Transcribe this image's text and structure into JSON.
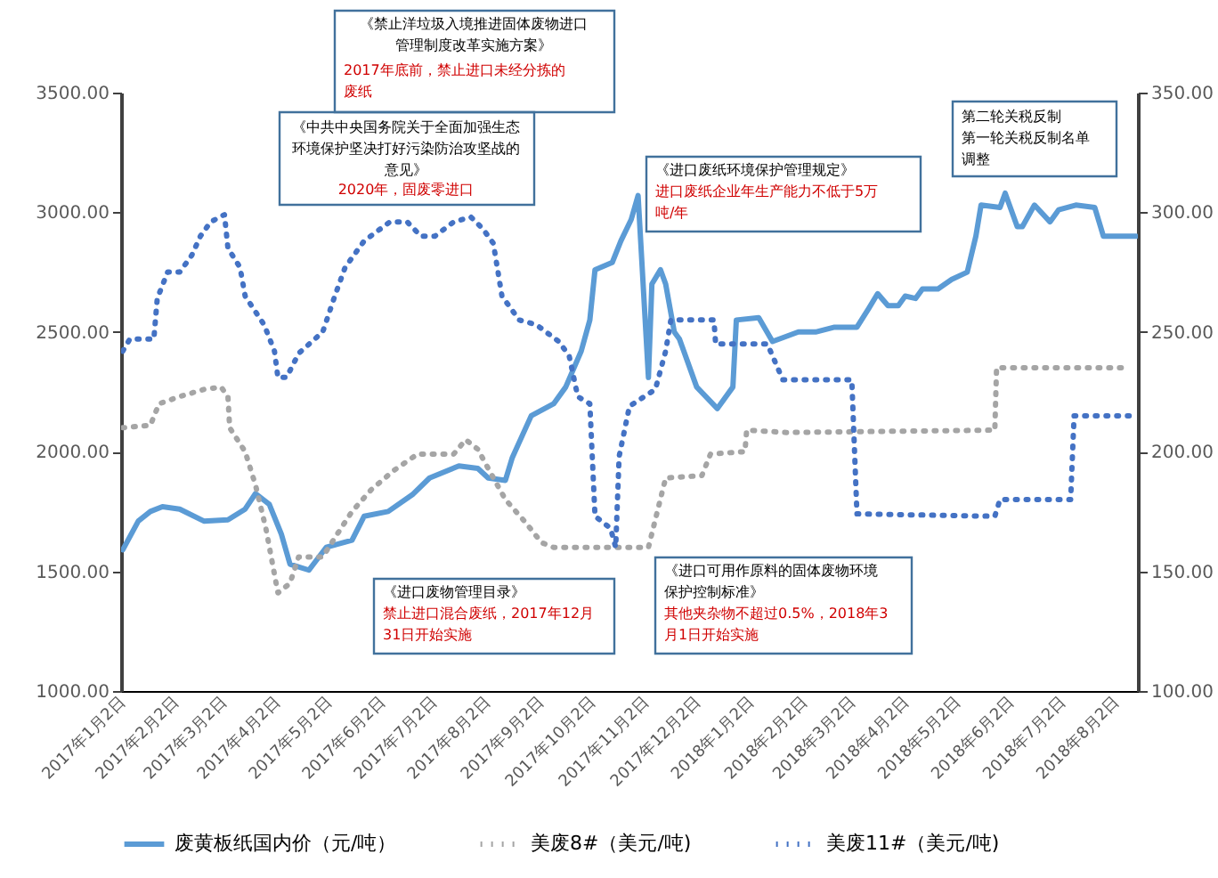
{
  "chart_data": {
    "type": "line",
    "legend": "bottom",
    "grid": false,
    "xlim": [
      "2017-01-02",
      "2018-08-15"
    ],
    "xticks": [
      {
        "value": "2017-01-02",
        "label": "2017年1月2日"
      },
      {
        "value": "2017-02-02",
        "label": "2017年2月2日"
      },
      {
        "value": "2017-03-02",
        "label": "2017年3月2日"
      },
      {
        "value": "2017-04-02",
        "label": "2017年4月2日"
      },
      {
        "value": "2017-05-02",
        "label": "2017年5月2日"
      },
      {
        "value": "2017-06-02",
        "label": "2017年6月2日"
      },
      {
        "value": "2017-07-02",
        "label": "2017年7月2日"
      },
      {
        "value": "2017-08-02",
        "label": "2017年8月2日"
      },
      {
        "value": "2017-09-02",
        "label": "2017年9月2日"
      },
      {
        "value": "2017-10-02",
        "label": "2017年10月2日"
      },
      {
        "value": "2017-11-02",
        "label": "2017年11月2日"
      },
      {
        "value": "2017-12-02",
        "label": "2017年12月2日"
      },
      {
        "value": "2018-01-02",
        "label": "2018年1月2日"
      },
      {
        "value": "2018-02-02",
        "label": "2018年2月2日"
      },
      {
        "value": "2018-03-02",
        "label": "2018年3月2日"
      },
      {
        "value": "2018-04-02",
        "label": "2018年4月2日"
      },
      {
        "value": "2018-05-02",
        "label": "2018年5月2日"
      },
      {
        "value": "2018-06-02",
        "label": "2018年6月2日"
      },
      {
        "value": "2018-07-02",
        "label": "2018年7月2日"
      },
      {
        "value": "2018-08-02",
        "label": "2018年8月2日"
      }
    ],
    "ylim": [
      1000,
      3500
    ],
    "yticks": [
      {
        "value": 1000,
        "label": "1000.00"
      },
      {
        "value": 1500,
        "label": "1500.00"
      },
      {
        "value": 2000,
        "label": "2000.00"
      },
      {
        "value": 2500,
        "label": "2500.00"
      },
      {
        "value": 3000,
        "label": "3000.00"
      },
      {
        "value": 3500,
        "label": "3500.00"
      }
    ],
    "y2lim": [
      100,
      350
    ],
    "y2ticks": [
      {
        "value": 100,
        "label": "100.00"
      },
      {
        "value": 150,
        "label": "150.00"
      },
      {
        "value": 200,
        "label": "200.00"
      },
      {
        "value": 250,
        "label": "250.00"
      },
      {
        "value": 300,
        "label": "300.00"
      },
      {
        "value": 350,
        "label": "350.00"
      }
    ],
    "series": [
      {
        "name": "废黄板纸国内价（元/吨）",
        "color": "#5b9bd5",
        "line_style": "solid",
        "x": [
          "2017-01-03",
          "2017-01-12",
          "2017-01-19",
          "2017-01-26",
          "2017-02-05",
          "2017-02-19",
          "2017-03-05",
          "2017-03-15",
          "2017-03-21",
          "2017-03-29",
          "2017-04-05",
          "2017-04-10",
          "2017-04-21",
          "2017-05-01",
          "2017-05-16",
          "2017-05-23",
          "2017-06-06",
          "2017-06-20",
          "2017-06-30",
          "2017-07-17",
          "2017-07-28",
          "2017-08-03",
          "2017-08-13",
          "2017-08-17",
          "2017-08-28",
          "2017-09-10",
          "2017-09-17",
          "2017-09-26",
          "2017-10-01",
          "2017-10-04",
          "2017-10-14",
          "2017-10-19",
          "2017-10-25",
          "2017-10-29",
          "2017-11-04",
          "2017-11-06",
          "2017-11-11",
          "2017-11-14",
          "2017-11-19",
          "2017-11-22",
          "2017-12-02",
          "2017-12-14",
          "2017-12-23",
          "2017-12-25",
          "2018-01-07",
          "2018-01-15",
          "2018-01-30",
          "2018-02-09",
          "2018-02-20",
          "2018-03-05",
          "2018-03-12",
          "2018-03-17",
          "2018-03-23",
          "2018-03-29",
          "2018-04-02",
          "2018-04-08",
          "2018-04-12",
          "2018-04-21",
          "2018-04-29",
          "2018-05-08",
          "2018-05-13",
          "2018-05-16",
          "2018-05-27",
          "2018-05-30",
          "2018-06-06",
          "2018-06-09",
          "2018-06-16",
          "2018-06-25",
          "2018-06-30",
          "2018-07-10",
          "2018-07-21",
          "2018-07-26",
          "2018-07-31",
          "2018-08-14"
        ],
        "values": [
          1590,
          1710,
          1750,
          1770,
          1760,
          1710,
          1715,
          1760,
          1825,
          1780,
          1655,
          1530,
          1505,
          1600,
          1630,
          1730,
          1750,
          1820,
          1890,
          1940,
          1930,
          1890,
          1880,
          1975,
          2150,
          2200,
          2270,
          2420,
          2550,
          2760,
          2790,
          2880,
          2970,
          3070,
          2310,
          2700,
          2760,
          2700,
          2500,
          2470,
          2270,
          2180,
          2270,
          2550,
          2560,
          2460,
          2500,
          2500,
          2520,
          2520,
          2600,
          2660,
          2610,
          2610,
          2650,
          2640,
          2680,
          2680,
          2720,
          2750,
          2900,
          3030,
          3020,
          3080,
          2940,
          2940,
          3030,
          2960,
          3010,
          3030,
          3020,
          2900,
          2900,
          2900
        ]
      },
      {
        "name": "美废8#（美元/吨)",
        "color": "#a5a5a5",
        "line_style": "dotted",
        "axis": "y2",
        "x": [
          "2017-01-03",
          "2017-01-19",
          "2017-01-24",
          "2017-02-05",
          "2017-02-19",
          "2017-03-01",
          "2017-03-05",
          "2017-03-06",
          "2017-03-15",
          "2017-03-21",
          "2017-03-27",
          "2017-04-03",
          "2017-04-10",
          "2017-04-15",
          "2017-04-29",
          "2017-05-06",
          "2017-05-16",
          "2017-05-27",
          "2017-06-09",
          "2017-06-23",
          "2017-07-14",
          "2017-07-21",
          "2017-07-28",
          "2017-08-03",
          "2017-08-13",
          "2017-08-24",
          "2017-09-03",
          "2017-09-10",
          "2017-10-30",
          "2017-11-04",
          "2017-11-14",
          "2017-12-05",
          "2017-12-10",
          "2017-12-30",
          "2017-12-31",
          "2018-01-23",
          "2018-05-24",
          "2018-05-25",
          "2018-08-10"
        ],
        "values": [
          210,
          211,
          220,
          223,
          226,
          227,
          223,
          210,
          200,
          186,
          168,
          141,
          145,
          156,
          156,
          164,
          175,
          184,
          192,
          199,
          199,
          205,
          201,
          193,
          180,
          171,
          162,
          160,
          160,
          160,
          189,
          190,
          199,
          200,
          209,
          208,
          209,
          235,
          235
        ]
      },
      {
        "name": "美废11#（美元/吨)",
        "color": "#4472c4",
        "line_style": "dotted",
        "axis": "y2",
        "x": [
          "2017-01-03",
          "2017-01-07",
          "2017-01-21",
          "2017-01-23",
          "2017-01-29",
          "2017-02-05",
          "2017-02-12",
          "2017-02-17",
          "2017-02-23",
          "2017-03-03",
          "2017-03-05",
          "2017-03-12",
          "2017-03-15",
          "2017-03-26",
          "2017-04-01",
          "2017-04-03",
          "2017-04-08",
          "2017-04-15",
          "2017-04-29",
          "2017-05-06",
          "2017-05-12",
          "2017-05-23",
          "2017-06-07",
          "2017-06-17",
          "2017-06-25",
          "2017-07-03",
          "2017-07-14",
          "2017-07-24",
          "2017-07-31",
          "2017-08-06",
          "2017-08-11",
          "2017-08-21",
          "2017-08-31",
          "2017-09-13",
          "2017-09-19",
          "2017-09-24",
          "2017-10-01",
          "2017-10-04",
          "2017-10-13",
          "2017-10-16",
          "2017-10-18",
          "2017-10-24",
          "2017-11-08",
          "2017-11-14",
          "2017-11-17",
          "2017-12-12",
          "2017-12-13",
          "2018-01-12",
          "2018-01-21",
          "2018-03-02",
          "2018-03-05",
          "2018-05-24",
          "2018-05-27",
          "2018-07-07",
          "2018-07-09",
          "2018-08-14"
        ],
        "values": [
          242,
          247,
          247,
          264,
          275,
          275,
          282,
          290,
          296,
          299,
          285,
          277,
          265,
          253,
          242,
          231,
          231,
          241,
          250,
          265,
          277,
          288,
          296,
          296,
          290,
          290,
          296,
          298,
          293,
          287,
          265,
          255,
          253,
          246,
          240,
          223,
          220,
          173,
          168,
          160,
          198,
          219,
          226,
          242,
          255,
          255,
          245,
          245,
          230,
          230,
          174,
          173,
          180,
          180,
          215,
          215
        ]
      }
    ],
    "annotations": [
      "《禁止洋垃圾入境推进固体废物进口管理制度改革实施方案》",
      "2017年底前，禁止进口未经分拣的废纸",
      "《中共中央国务院关于全面加强生态环境保护坚决打好污染防治攻坚战的意见》",
      "2020年，固废零进口",
      "《进口废纸环境保护管理规定》",
      "进口废纸企业年生产能力不低于5万吨/年",
      "第二轮关税反制",
      "第一轮关税反制名单调整",
      "《进口废物管理目录》",
      "禁止进口混合废纸，2017年12月31日开始实施",
      "《进口可用作原料的固体废物环境保护控制标准》",
      "其他夹杂物不超过0.5%，2018年3月1日开始实施"
    ]
  }
}
